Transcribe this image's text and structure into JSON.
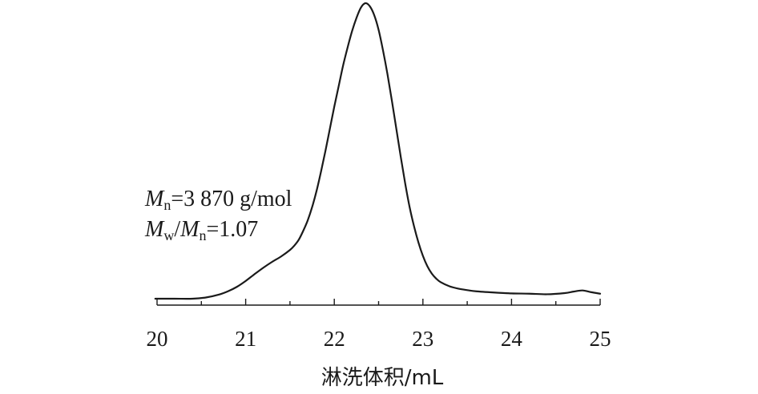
{
  "chart_data": {
    "type": "line",
    "xlabel": "淋洗体积/mL",
    "ylabel": "",
    "xlim": [
      20,
      25
    ],
    "ylim": [
      0,
      1
    ],
    "x_ticks": [
      20,
      21,
      22,
      23,
      24,
      25
    ],
    "x_tick_labels": [
      "20",
      "21",
      "22",
      "23",
      "24",
      "25"
    ],
    "minor_tick_step": 0.5,
    "grid": false,
    "series": [
      {
        "x": [
          19.98,
          20.2,
          20.4,
          20.55,
          20.7,
          20.8,
          20.9,
          21.0,
          21.1,
          21.2,
          21.3,
          21.4,
          21.5,
          21.55,
          21.6,
          21.65,
          21.7,
          21.75,
          21.8,
          21.85,
          21.9,
          21.95,
          22.0,
          22.05,
          22.1,
          22.15,
          22.2,
          22.25,
          22.3,
          22.35,
          22.4,
          22.45,
          22.5,
          22.55,
          22.6,
          22.65,
          22.7,
          22.75,
          22.8,
          22.85,
          22.9,
          22.95,
          23.0,
          23.05,
          23.1,
          23.15,
          23.2,
          23.3,
          23.4,
          23.5,
          23.6,
          23.8,
          24.0,
          24.2,
          24.4,
          24.6,
          24.7,
          24.8,
          24.9,
          25.0
        ],
        "y": [
          0.0,
          0.0,
          0.0,
          0.004,
          0.014,
          0.025,
          0.04,
          0.06,
          0.083,
          0.105,
          0.125,
          0.143,
          0.165,
          0.18,
          0.2,
          0.23,
          0.265,
          0.31,
          0.365,
          0.43,
          0.5,
          0.575,
          0.65,
          0.72,
          0.79,
          0.85,
          0.905,
          0.95,
          0.985,
          1.0,
          0.99,
          0.96,
          0.91,
          0.84,
          0.76,
          0.67,
          0.575,
          0.48,
          0.39,
          0.31,
          0.245,
          0.19,
          0.145,
          0.11,
          0.085,
          0.068,
          0.056,
          0.042,
          0.034,
          0.029,
          0.025,
          0.021,
          0.018,
          0.017,
          0.015,
          0.019,
          0.024,
          0.028,
          0.022,
          0.017
        ]
      }
    ],
    "annotations": {
      "mn": {
        "symbol": "M",
        "sub": "n",
        "rest": "=3 870 g/mol"
      },
      "dispersity": {
        "symbol1": "M",
        "sub1": "w",
        "slash": "/",
        "symbol2": "M",
        "sub2": "n",
        "rest": "=1.07"
      }
    }
  }
}
